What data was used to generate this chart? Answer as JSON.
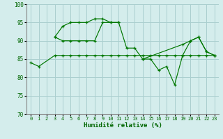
{
  "xlabel": "Humidité relative (%)",
  "bg_color": "#d4edec",
  "grid_color": "#aacfcf",
  "line_color": "#007700",
  "ylim": [
    70,
    100
  ],
  "yticks": [
    70,
    75,
    80,
    85,
    90,
    95,
    100
  ],
  "xlim": [
    -0.5,
    23.5
  ],
  "xticks": [
    0,
    1,
    2,
    3,
    4,
    5,
    6,
    7,
    8,
    9,
    10,
    11,
    12,
    13,
    14,
    15,
    16,
    17,
    18,
    19,
    20,
    21,
    22,
    23
  ],
  "series": [
    {
      "x": [
        0,
        1,
        3,
        4,
        5,
        6,
        7,
        8,
        9,
        10,
        11,
        12,
        13,
        14,
        15,
        16,
        17,
        18,
        19,
        20,
        21,
        22,
        23
      ],
      "y": [
        84,
        83,
        86,
        86,
        86,
        86,
        86,
        86,
        86,
        86,
        86,
        86,
        86,
        86,
        86,
        86,
        86,
        86,
        86,
        86,
        86,
        86,
        86
      ]
    },
    {
      "x": [
        3,
        4,
        5,
        6,
        7,
        8,
        9,
        10,
        11,
        12,
        13,
        14,
        19,
        20,
        21,
        22,
        23
      ],
      "y": [
        91,
        90,
        90,
        90,
        90,
        90,
        95,
        95,
        95,
        88,
        88,
        85,
        89,
        90,
        91,
        87,
        86
      ]
    },
    {
      "x": [
        3,
        4,
        5,
        6,
        7,
        8,
        9,
        10,
        11
      ],
      "y": [
        91,
        94,
        95,
        95,
        95,
        96,
        96,
        95,
        95
      ]
    },
    {
      "x": [
        14,
        15,
        16,
        17,
        18,
        19,
        20,
        21,
        22,
        23
      ],
      "y": [
        85,
        85,
        82,
        83,
        78,
        86,
        90,
        91,
        87,
        86
      ]
    }
  ]
}
